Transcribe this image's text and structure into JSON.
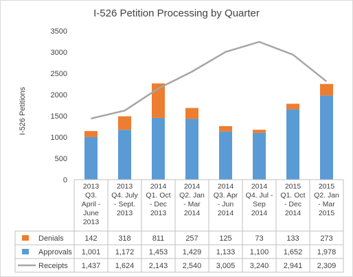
{
  "chart_data": {
    "type": "bar",
    "title": "I-526 Petition Processing by Quarter",
    "ylabel": "I-526 Petitions",
    "ylim": [
      0,
      3500
    ],
    "yticks": [
      0,
      500,
      1000,
      1500,
      2000,
      2500,
      3000,
      3500
    ],
    "ytick_labels": [
      "0",
      "500",
      "1000",
      "1500",
      "2000",
      "2500",
      "3000",
      "3500"
    ],
    "grid": false,
    "legend": "table-below",
    "categories": [
      [
        "2013",
        "Q3.",
        "April -",
        "June",
        "2013"
      ],
      [
        "2013",
        "Q4. July",
        "- Sept.",
        "2013"
      ],
      [
        "2014",
        "Q1. Oct",
        "- Dec",
        "2013"
      ],
      [
        "2014",
        "Q2. Jan",
        "- Mar",
        "2014"
      ],
      [
        "2014",
        "Q3. Apr",
        "- Jun",
        "2014"
      ],
      [
        "2014",
        "Q4. Jul -",
        "Sep",
        "2014"
      ],
      [
        "2015",
        "Q1. Oct",
        "- Dec",
        "2014"
      ],
      [
        "2015",
        "Q2. Jan",
        "- Mar",
        "2015"
      ]
    ],
    "series": [
      {
        "name": "Denials",
        "type": "bar-stacked",
        "color": "#ED7D31",
        "values": [
          142,
          318,
          811,
          257,
          125,
          73,
          133,
          273
        ],
        "labels": [
          "142",
          "318",
          "811",
          "257",
          "125",
          "73",
          "133",
          "273"
        ]
      },
      {
        "name": "Approvals",
        "type": "bar-stacked",
        "color": "#5B9BD5",
        "values": [
          1001,
          1172,
          1453,
          1429,
          1133,
          1100,
          1652,
          1978
        ],
        "labels": [
          "1,001",
          "1,172",
          "1,453",
          "1,429",
          "1,133",
          "1,100",
          "1,652",
          "1,978"
        ]
      },
      {
        "name": "Receipts",
        "type": "line",
        "color": "#A5A5A5",
        "values": [
          1437,
          1624,
          2143,
          2540,
          3005,
          3240,
          2941,
          2309
        ],
        "labels": [
          "1,437",
          "1,624",
          "2,143",
          "2,540",
          "3,005",
          "3,240",
          "2,941",
          "2,309"
        ]
      }
    ]
  }
}
